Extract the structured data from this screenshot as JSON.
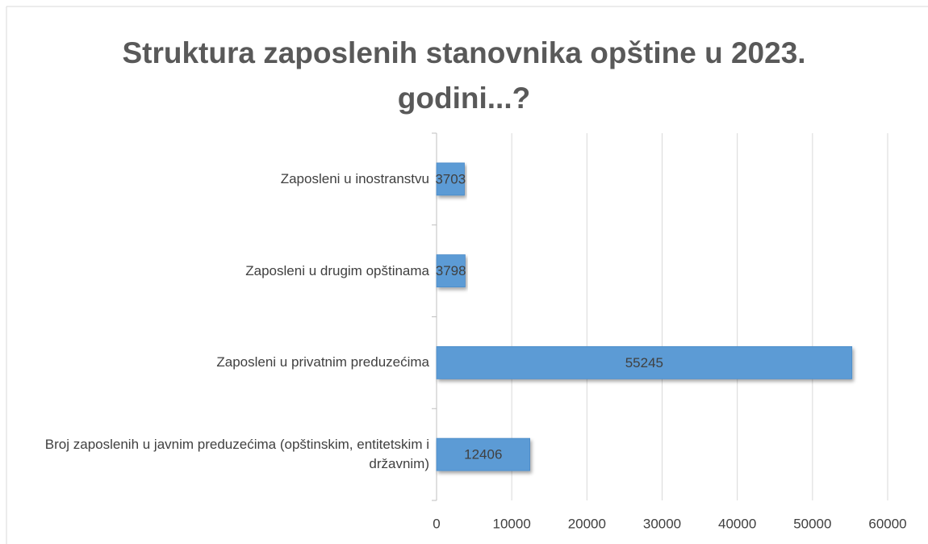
{
  "chart_data": {
    "type": "barh",
    "title": "Struktura zaposlenih stanovnika opštine u 2023. godini...?",
    "categories": [
      "Zaposleni u inostranstvu",
      "Zaposleni u drugim opštinama",
      "Zaposleni u privatnim preduzećima",
      "Broj zaposlenih u javnim preduzećima (opštinskim, entitetskim i državnim)"
    ],
    "values": [
      3703,
      3798,
      55245,
      12406
    ],
    "color": "#5b9bd5",
    "xlim": [
      0,
      60000
    ],
    "xticks": [
      0,
      10000,
      20000,
      30000,
      40000,
      50000,
      60000
    ],
    "grid": true
  }
}
